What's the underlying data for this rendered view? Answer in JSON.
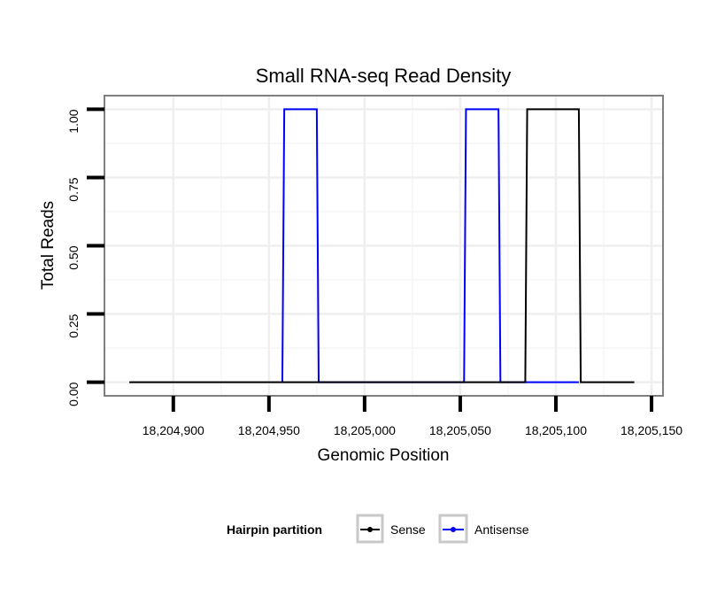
{
  "chart_data": {
    "type": "line",
    "title": "Small RNA-seq Read Density",
    "xlabel": "Genomic Position",
    "ylabel": "Total Reads",
    "xlim": [
      18204864,
      18205156
    ],
    "ylim": [
      -0.05,
      1.05
    ],
    "x_ticks": [
      {
        "value": 18204900,
        "label": "18,204,900"
      },
      {
        "value": 18204950,
        "label": "18,204,950"
      },
      {
        "value": 18205000,
        "label": "18,205,000"
      },
      {
        "value": 18205050,
        "label": "18,205,050"
      },
      {
        "value": 18205100,
        "label": "18,205,100"
      },
      {
        "value": 18205150,
        "label": "18,205,150"
      }
    ],
    "y_ticks": [
      {
        "value": 0,
        "label": "0.00"
      },
      {
        "value": 0.25,
        "label": "0.25"
      },
      {
        "value": 0.5,
        "label": "0.50"
      },
      {
        "value": 0.75,
        "label": "0.75"
      },
      {
        "value": 1,
        "label": "1.00"
      }
    ],
    "grid": true,
    "legend": {
      "title": "Hairpin partition",
      "position": "bottom"
    },
    "series": [
      {
        "name": "Antisense",
        "color": "#0000ff",
        "x": [
          18204957,
          18204958,
          18204975,
          18204976,
          18205052,
          18205053,
          18205070,
          18205071,
          18205084,
          18205112
        ],
        "y": [
          0,
          1,
          1,
          0,
          0,
          1,
          1,
          0,
          0,
          0
        ]
      },
      {
        "name": "Sense",
        "color": "#000000",
        "x": [
          18204877,
          18205084,
          18205085,
          18205112,
          18205113,
          18205141
        ],
        "y": [
          0,
          0,
          1,
          1,
          0,
          0
        ]
      }
    ]
  }
}
